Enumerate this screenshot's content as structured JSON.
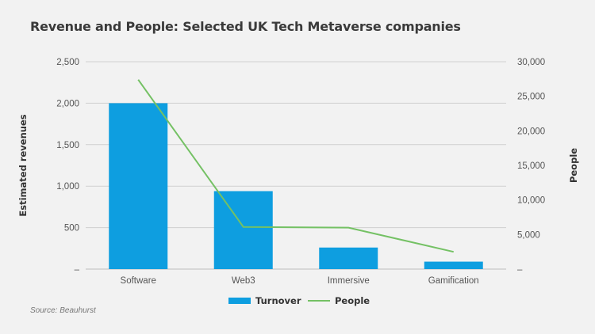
{
  "chart_data": {
    "type": "bar",
    "title": "Revenue and People: Selected UK Tech Metaverse companies",
    "source": "Source: Beauhurst",
    "categories": [
      "Software",
      "Web3",
      "Immersive",
      "Gamification"
    ],
    "series": [
      {
        "name": "Turnover",
        "kind": "bar",
        "axis": "left",
        "color": "#0e9ee0",
        "values": [
          2000,
          940,
          260,
          90
        ]
      },
      {
        "name": "People",
        "kind": "line",
        "axis": "right",
        "color": "#74c164",
        "values": [
          27400,
          6100,
          6000,
          2500
        ]
      }
    ],
    "ylabel": "Estimated revenues",
    "y2label": "People",
    "ylim": [
      0,
      2500
    ],
    "y2lim": [
      0,
      30000
    ],
    "yticks": [
      "–",
      "500",
      "1,000",
      "1,500",
      "2,000",
      "2,500"
    ],
    "y2ticks": [
      "–",
      "5,000",
      "10,000",
      "15,000",
      "20,000",
      "25,000",
      "30,000"
    ],
    "grid": true,
    "legend_position": "bottom"
  }
}
